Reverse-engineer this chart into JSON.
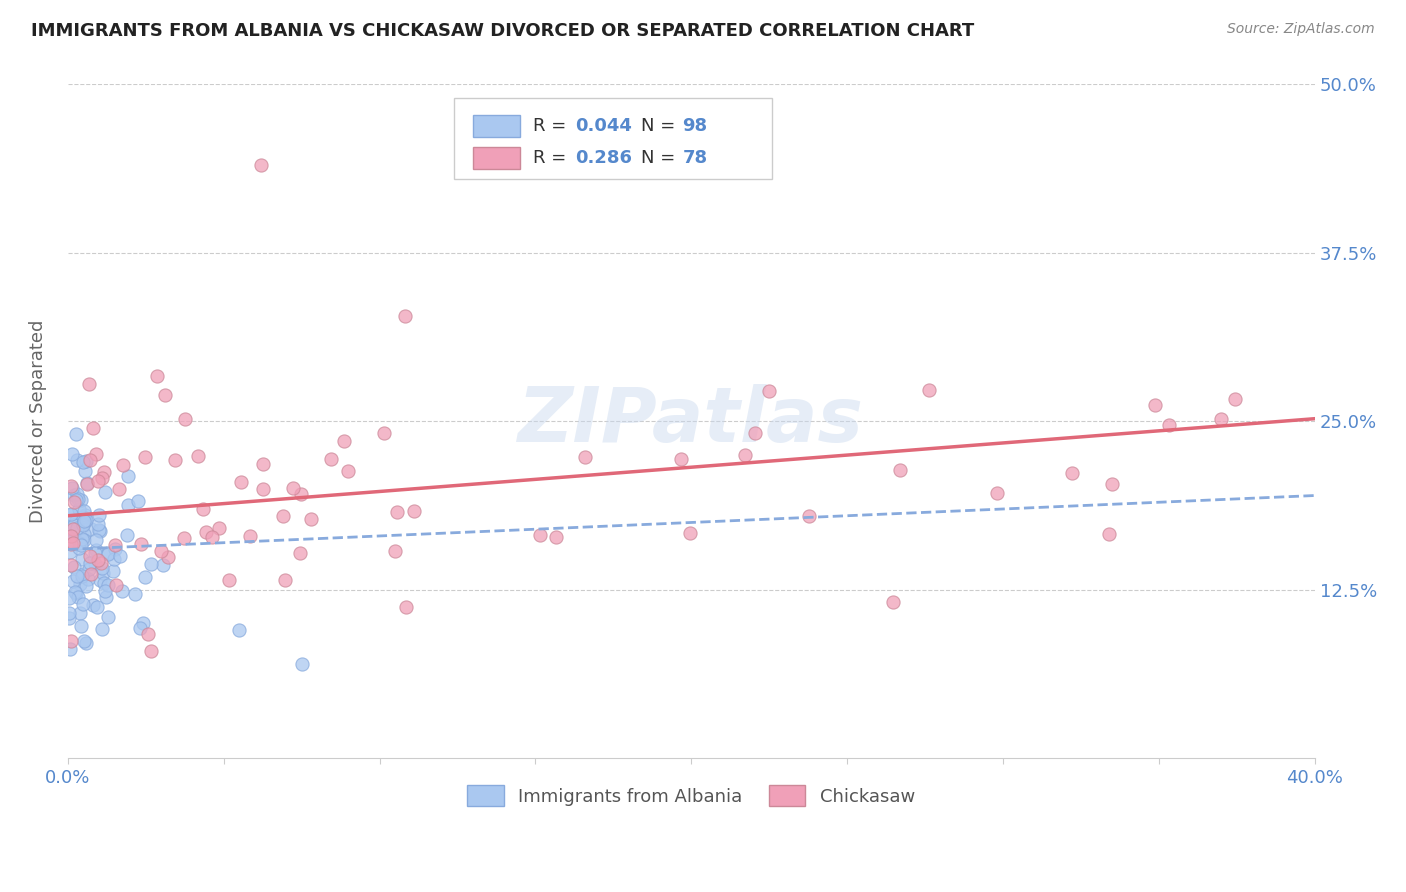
{
  "title": "IMMIGRANTS FROM ALBANIA VS CHICKASAW DIVORCED OR SEPARATED CORRELATION CHART",
  "source": "Source: ZipAtlas.com",
  "ylabel": "Divorced or Separated",
  "xlim": [
    0.0,
    0.4
  ],
  "ylim": [
    0.0,
    0.5
  ],
  "ytick_positions": [
    0.125,
    0.25,
    0.375,
    0.5
  ],
  "ytick_labels": [
    "12.5%",
    "25.0%",
    "37.5%",
    "50.0%"
  ],
  "blue_R": 0.044,
  "blue_N": 98,
  "pink_R": 0.286,
  "pink_N": 78,
  "blue_color": "#aac8f0",
  "pink_color": "#f0a0b8",
  "blue_edge_color": "#88aadd",
  "pink_edge_color": "#cc8898",
  "blue_line_color": "#88aadd",
  "pink_line_color": "#e06878",
  "legend_label_blue": "Immigrants from Albania",
  "legend_label_pink": "Chickasaw",
  "watermark": "ZIPatlas",
  "background_color": "#ffffff",
  "grid_color": "#cccccc",
  "title_color": "#222222",
  "tick_color": "#5588cc",
  "blue_trend_start_y": 0.155,
  "blue_trend_end_y": 0.195,
  "pink_trend_start_y": 0.18,
  "pink_trend_end_y": 0.252
}
